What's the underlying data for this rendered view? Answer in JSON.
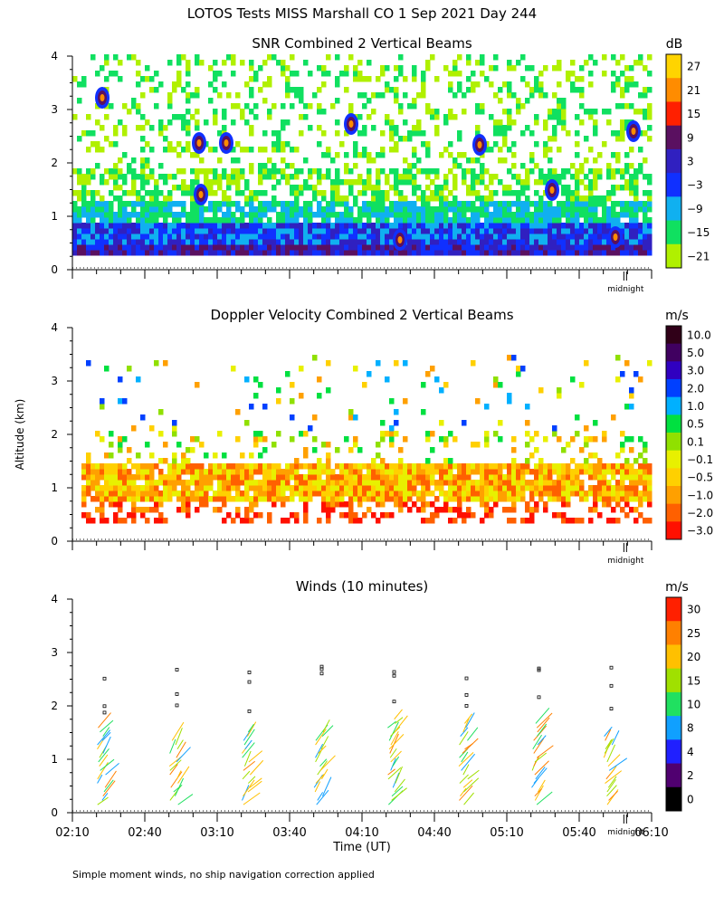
{
  "title": "LOTOS Tests MISS Marshall CO    1 Sep 2021 Day 244",
  "ylabel": "Altitude (km)",
  "xlabel": "Time (UT)",
  "midnight_label": "midnight",
  "footnote": "Simple moment winds, no ship navigation correction applied",
  "chart_data": [
    {
      "type": "heatmap",
      "title": "SNR Combined 2 Vertical Beams",
      "ylim": [
        0,
        4
      ],
      "yticks": [
        "0",
        "1",
        "2",
        "3",
        "4"
      ],
      "colorbar_unit": "dB",
      "colorbar_labels": [
        "27",
        "21",
        "15",
        "9",
        "3",
        "−3",
        "−9",
        "−15",
        "−21"
      ],
      "colorbar_colors": [
        "#ffd400",
        "#ff8c00",
        "#ff2000",
        "#5a1060",
        "#3020c0",
        "#1030ff",
        "#10b0f0",
        "#10e060",
        "#b0f000"
      ]
    },
    {
      "type": "heatmap",
      "title": "Doppler Velocity Combined 2 Vertical Beams",
      "ylim": [
        0,
        4
      ],
      "yticks": [
        "0",
        "1",
        "2",
        "3",
        "4"
      ],
      "colorbar_unit": "m/s",
      "colorbar_labels": [
        "10.0",
        "5.0",
        "3.0",
        "2.0",
        "1.0",
        "0.5",
        "0.1",
        "−0.1",
        "−0.5",
        "−1.0",
        "−2.0",
        "−3.0"
      ],
      "colorbar_colors": [
        "#300018",
        "#400060",
        "#3000c0",
        "#0040ff",
        "#00b0ff",
        "#00e040",
        "#90e000",
        "#e8f000",
        "#ffd000",
        "#ffa000",
        "#ff6000",
        "#ff1000"
      ]
    },
    {
      "type": "scatter",
      "title": "Winds (10 minutes)",
      "ylim": [
        0,
        4
      ],
      "yticks": [
        "0",
        "1",
        "2",
        "3",
        "4"
      ],
      "colorbar_unit": "m/s",
      "colorbar_labels": [
        "30",
        "25",
        "20",
        "15",
        "10",
        "8",
        "4",
        "2",
        "0"
      ],
      "colorbar_colors": [
        "#ff2000",
        "#ff8000",
        "#ffc000",
        "#a0e000",
        "#20e060",
        "#10a0ff",
        "#2020ff",
        "#500070",
        "#000000"
      ],
      "xticks": [
        "02:10",
        "02:40",
        "03:10",
        "03:40",
        "04:10",
        "04:40",
        "05:10",
        "05:40",
        "06:10"
      ],
      "profile_times": [
        "02:25",
        "02:55",
        "03:25",
        "03:55",
        "04:25",
        "04:55",
        "05:25",
        "05:55"
      ]
    }
  ]
}
